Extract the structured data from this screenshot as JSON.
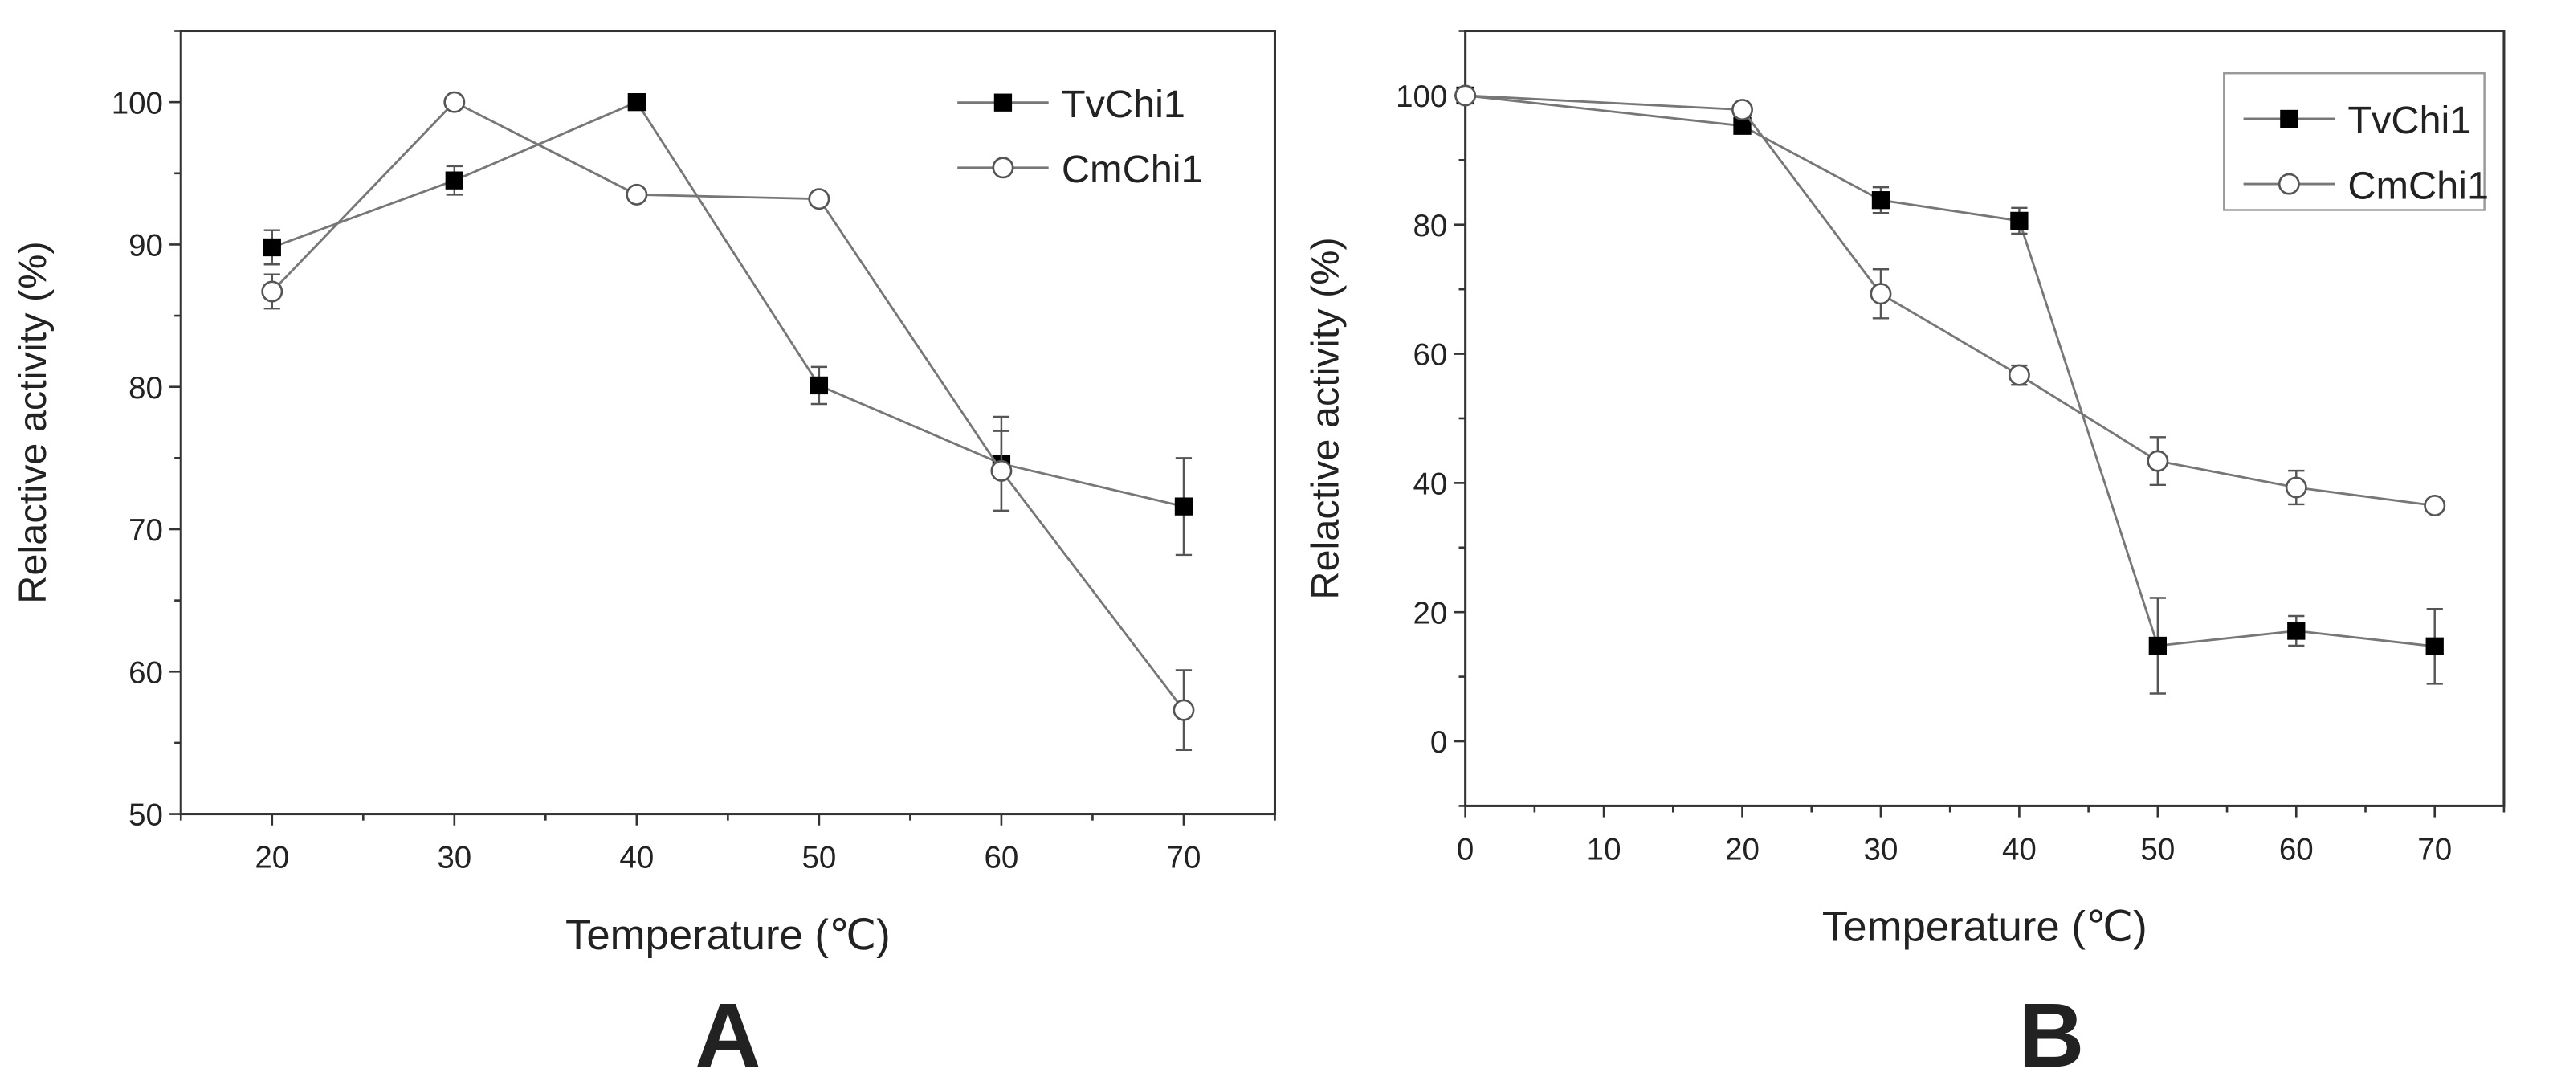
{
  "chart_data": [
    {
      "type": "line",
      "panel_label": "A",
      "xlabel": "Temperature (℃)",
      "ylabel": "Relactive activity (%)",
      "xlim": [
        15,
        75
      ],
      "ylim": [
        50,
        105
      ],
      "xticks": [
        20,
        30,
        40,
        50,
        60,
        70
      ],
      "yticks": [
        50,
        60,
        70,
        80,
        90,
        100
      ],
      "grid": false,
      "legend": {
        "placement": "top-right",
        "boxed": false
      },
      "x": [
        20,
        30,
        40,
        50,
        60,
        70
      ],
      "series": [
        {
          "name": "TvChi1",
          "marker": "filled-square",
          "values": [
            89.8,
            94.5,
            100,
            80.1,
            74.6,
            71.6
          ],
          "errors": [
            1.2,
            1.0,
            0,
            1.3,
            3.3,
            3.4
          ]
        },
        {
          "name": "CmChi1",
          "marker": "open-circle",
          "values": [
            86.7,
            100,
            93.5,
            93.2,
            74.1,
            57.3
          ],
          "errors": [
            1.2,
            0,
            0,
            0,
            2.8,
            2.8
          ]
        }
      ]
    },
    {
      "type": "line",
      "panel_label": "B",
      "xlabel": "Temperature (℃)",
      "ylabel": "Relactive activity (%)",
      "xlim": [
        0,
        75
      ],
      "ylim": [
        -10,
        110
      ],
      "xticks": [
        0,
        10,
        20,
        30,
        40,
        50,
        60,
        70
      ],
      "yticks": [
        0,
        20,
        40,
        60,
        80,
        100
      ],
      "grid": false,
      "legend": {
        "placement": "top-right",
        "boxed": true
      },
      "x": [
        0,
        20,
        30,
        40,
        50,
        60,
        70
      ],
      "series": [
        {
          "name": "TvChi1",
          "marker": "filled-square",
          "values": [
            100,
            95.3,
            83.8,
            80.6,
            14.8,
            17.1,
            14.7
          ],
          "errors": [
            0,
            0.8,
            2.0,
            2.0,
            7.4,
            2.3,
            5.8
          ]
        },
        {
          "name": "CmChi1",
          "marker": "open-circle",
          "values": [
            100,
            97.8,
            69.3,
            56.7,
            43.4,
            39.3,
            36.5
          ],
          "errors": [
            0,
            0,
            3.8,
            1.5,
            3.7,
            2.6,
            1.0
          ]
        }
      ]
    }
  ]
}
